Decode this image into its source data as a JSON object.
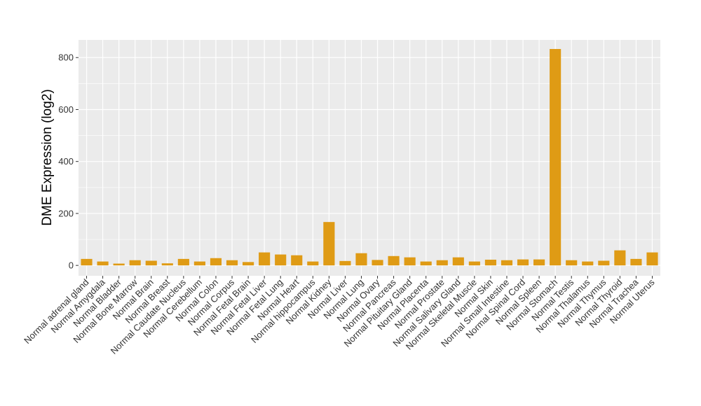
{
  "chart_data": {
    "type": "bar",
    "ylabel": "DME Expression (log2)",
    "xlabel": "",
    "title": "",
    "ylim": [
      -40,
      868
    ],
    "yticks": [
      0,
      200,
      400,
      600,
      800
    ],
    "grid": true,
    "bar_color": "#DF9B15",
    "panel_color": "#EBEBEB",
    "grid_color": "#FFFFFF",
    "categories": [
      "Normal adrenal gland",
      "Normal Amygdala",
      "Normal Bladder",
      "Normal Bone Marrow",
      "Normal Brain",
      "Normal Breast",
      "Normal Caudate Nucleus",
      "Normal Cerebellum",
      "Normal Colon",
      "Normal Corpus",
      "Normal Fetal Brain",
      "Normal Fetal Liver",
      "Normal Fetal Lung",
      "Normal Heart",
      "Normal hippocampus",
      "Normal Kidney",
      "Normal Liver",
      "Normal Lung",
      "Normal Ovary",
      "Normal Pancreas",
      "Normal Pituitary Gland",
      "Normal Placenta",
      "Normal Prostate",
      "Normal Salivary Gland",
      "Normal Skeletal Muscle",
      "Normal Skin",
      "Normal Small Intestine",
      "Normal Spinal Cord",
      "Normal Spleen",
      "Normal Stomach",
      "Normal Testis",
      "Normal Thalamus",
      "Normal Thymus",
      "Normal Thyroid",
      "Normal Trachea",
      "Normal Uterus"
    ],
    "values": [
      25,
      15,
      7,
      20,
      18,
      8,
      25,
      15,
      28,
      20,
      13,
      50,
      42,
      39,
      15,
      167,
      17,
      47,
      21,
      36,
      31,
      15,
      20,
      31,
      15,
      22,
      20,
      23,
      23,
      833,
      20,
      15,
      18,
      58,
      25,
      50
    ]
  }
}
